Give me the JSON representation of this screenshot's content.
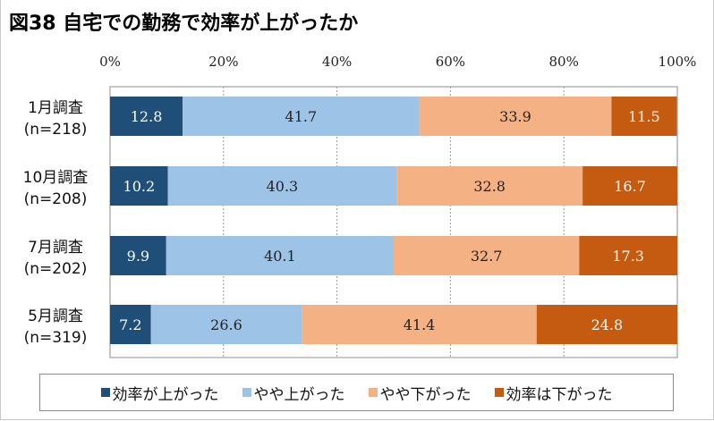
{
  "chart_data": {
    "type": "bar",
    "orientation": "horizontal",
    "stacked": true,
    "percent": true,
    "title": "図38 自宅での勤務で効率が上がったか",
    "xlabel": "",
    "ylabel": "",
    "xlim": [
      0,
      100
    ],
    "x_ticks": [
      "0%",
      "20%",
      "40%",
      "60%",
      "80%",
      "100%"
    ],
    "x_tick_values": [
      0,
      20,
      40,
      60,
      80,
      100
    ],
    "grid": "vertical dashed",
    "x_axis_position": "top",
    "legend_position": "bottom",
    "categories": [
      {
        "label": "1月調査",
        "n": "(n=218)"
      },
      {
        "label": "10月調査",
        "n": "(n=208)"
      },
      {
        "label": "7月調査",
        "n": "(n=202)"
      },
      {
        "label": "5月調査",
        "n": "(n=319)"
      }
    ],
    "series": [
      {
        "name": "効率が上がった",
        "color": "#1f4e79",
        "label_color": "#ffffff",
        "values": [
          12.8,
          10.2,
          9.9,
          7.2
        ]
      },
      {
        "name": "やや上がった",
        "color": "#9dc3e6",
        "label_color": "#222222",
        "values": [
          41.7,
          40.3,
          40.1,
          26.6
        ]
      },
      {
        "name": "やや下がった",
        "color": "#f4b183",
        "label_color": "#222222",
        "values": [
          33.9,
          32.8,
          32.7,
          41.4
        ]
      },
      {
        "name": "効率は下がった",
        "color": "#c55a11",
        "label_color": "#ffffff",
        "values": [
          11.5,
          16.7,
          17.3,
          24.8
        ]
      }
    ]
  }
}
